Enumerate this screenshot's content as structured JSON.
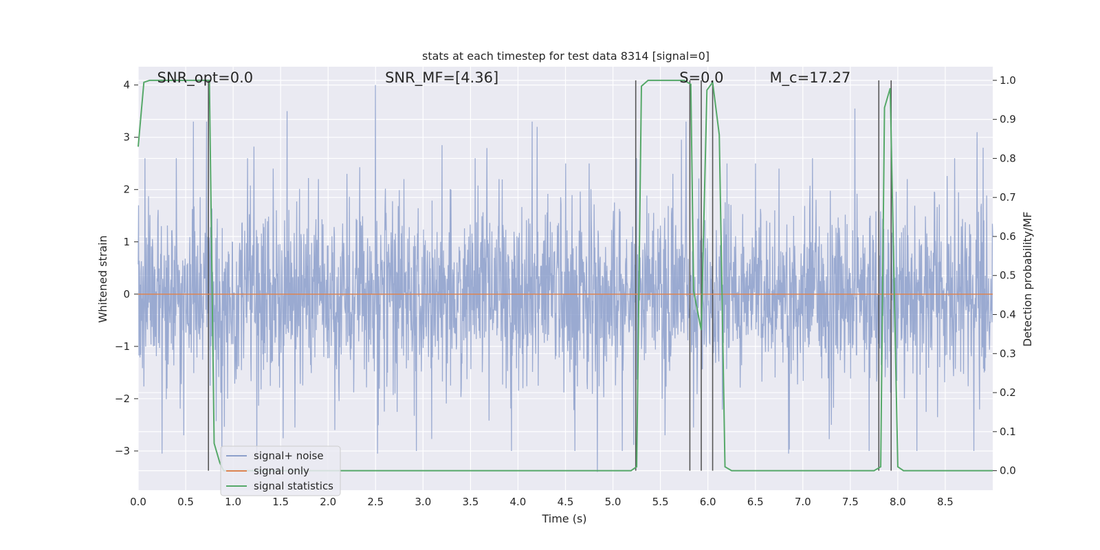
{
  "chart_data": {
    "type": "line",
    "title": "stats at each timestep for test data 8314 [signal=0]",
    "xlabel": "Time (s)",
    "ylabel_left": "Whitened strain",
    "ylabel_right": "Detection probability/MF",
    "xlim": [
      0,
      9.0
    ],
    "ylim_left": [
      -3.75,
      4.35
    ],
    "ylim_right": [
      -0.05,
      1.035
    ],
    "x_ticks": [
      "0.0",
      "0.5",
      "1.0",
      "1.5",
      "2.0",
      "2.5",
      "3.0",
      "3.5",
      "4.0",
      "4.5",
      "5.0",
      "5.5",
      "6.0",
      "6.5",
      "7.0",
      "7.5",
      "8.0",
      "8.5"
    ],
    "y_ticks_left": [
      "−3",
      "−2",
      "−1",
      "0",
      "1",
      "2",
      "3",
      "4"
    ],
    "y_ticks_right": [
      "0.0",
      "0.1",
      "0.2",
      "0.3",
      "0.4",
      "0.5",
      "0.6",
      "0.7",
      "0.8",
      "0.9",
      "1.0"
    ],
    "grid": true,
    "legend_position": "lower-left",
    "colors": {
      "background": "#eaeaf2",
      "grid": "#ffffff",
      "signal_noise": "#8c9fcb",
      "signal_only": "#dd8452",
      "signal_statistics": "#55a868",
      "vlines": "#555555"
    },
    "annotations": [
      {
        "text": "SNR_opt=0.0",
        "x": 0.2,
        "y": 4.05
      },
      {
        "text": "SNR_MF=[4.36]",
        "x": 2.6,
        "y": 4.05
      },
      {
        "text": "S=0.0",
        "x": 5.7,
        "y": 4.05
      },
      {
        "text": "M_c=17.27",
        "x": 6.65,
        "y": 4.05
      }
    ],
    "series": [
      {
        "name": "signal+ noise",
        "axis": "left",
        "noise_envelope": {
          "std": 0.85,
          "min": -3.4,
          "max": 4.0
        },
        "spikes": [
          {
            "x": 0.07,
            "y": 2.6
          },
          {
            "x": 0.25,
            "y": -3.05
          },
          {
            "x": 0.4,
            "y": 2.6
          },
          {
            "x": 0.48,
            "y": -2.7
          },
          {
            "x": 0.58,
            "y": 3.3
          },
          {
            "x": 0.72,
            "y": 3.3
          },
          {
            "x": 0.88,
            "y": -3.3
          },
          {
            "x": 1.15,
            "y": 2.6
          },
          {
            "x": 1.25,
            "y": -3.1
          },
          {
            "x": 1.42,
            "y": 2.4
          },
          {
            "x": 1.57,
            "y": 3.5
          },
          {
            "x": 1.65,
            "y": -2.55
          },
          {
            "x": 1.9,
            "y": 2.2
          },
          {
            "x": 2.07,
            "y": -2.6
          },
          {
            "x": 2.2,
            "y": 2.3
          },
          {
            "x": 2.5,
            "y": 4.0
          },
          {
            "x": 2.52,
            "y": -3.05
          },
          {
            "x": 2.8,
            "y": 2.2
          },
          {
            "x": 2.93,
            "y": -3.0
          },
          {
            "x": 3.2,
            "y": 2.85
          },
          {
            "x": 3.55,
            "y": 2.6
          },
          {
            "x": 3.8,
            "y": 2.2
          },
          {
            "x": 3.93,
            "y": -3.0
          },
          {
            "x": 4.15,
            "y": 3.3
          },
          {
            "x": 4.2,
            "y": 3.2
          },
          {
            "x": 4.5,
            "y": 2.5
          },
          {
            "x": 4.6,
            "y": -3.0
          },
          {
            "x": 4.75,
            "y": 2.5
          },
          {
            "x": 5.1,
            "y": -3.0
          },
          {
            "x": 5.25,
            "y": 2.6
          },
          {
            "x": 5.55,
            "y": -2.7
          },
          {
            "x": 5.63,
            "y": 2.3
          },
          {
            "x": 5.77,
            "y": 3.3
          },
          {
            "x": 5.85,
            "y": -2.55
          },
          {
            "x": 6.2,
            "y": 2.5
          },
          {
            "x": 6.5,
            "y": 2.5
          },
          {
            "x": 6.75,
            "y": 2.4
          },
          {
            "x": 6.85,
            "y": -3.05
          },
          {
            "x": 7.1,
            "y": 2.6
          },
          {
            "x": 7.3,
            "y": -2.5
          },
          {
            "x": 7.55,
            "y": 3.55
          },
          {
            "x": 7.7,
            "y": -3.0
          },
          {
            "x": 8.1,
            "y": 2.2
          },
          {
            "x": 8.2,
            "y": -3.0
          },
          {
            "x": 8.6,
            "y": 2.6
          },
          {
            "x": 8.8,
            "y": -3.0
          },
          {
            "x": 8.9,
            "y": 2.8
          }
        ]
      },
      {
        "name": "signal only",
        "axis": "left",
        "x": [
          0,
          9.0
        ],
        "y": [
          0,
          0
        ]
      },
      {
        "name": "signal statistics",
        "axis": "right",
        "x": [
          0.0,
          0.06,
          0.12,
          0.68,
          0.75,
          0.8,
          0.86,
          0.9,
          0.95,
          5.19,
          5.25,
          5.3,
          5.37,
          5.75,
          5.82,
          5.85,
          5.93,
          5.99,
          6.05,
          6.12,
          6.18,
          6.25,
          7.75,
          7.82,
          7.86,
          7.92,
          8.0,
          8.06,
          9.0
        ],
        "y": [
          0.83,
          0.995,
          1.0,
          1.0,
          1.0,
          0.07,
          0.02,
          0.0,
          0.0,
          0.0,
          0.01,
          0.985,
          1.0,
          1.0,
          0.99,
          0.46,
          0.36,
          0.975,
          0.995,
          0.86,
          0.01,
          0.0,
          0.0,
          0.01,
          0.93,
          0.98,
          0.01,
          0.0,
          0.0
        ]
      }
    ],
    "vertical_lines": [
      0.74,
      5.24,
      5.81,
      5.93,
      6.05,
      7.8,
      7.93
    ],
    "vertical_lines_range": [
      -3.4,
      4.0
    ]
  }
}
